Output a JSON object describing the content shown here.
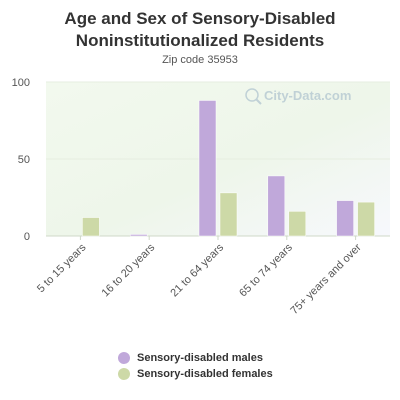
{
  "header": {
    "title_line1": "Age and Sex of Sensory-Disabled",
    "title_line2": "Noninstitutionalized Residents",
    "subtitle": "Zip code 35953"
  },
  "watermark": "City-Data.com",
  "colors": {
    "males": "#c0a8da",
    "females": "#cdd9a7",
    "axis_text": "#555555",
    "gridline": "#e6eee0"
  },
  "chart_data": {
    "type": "bar",
    "title": "Age and Sex of Sensory-Disabled Noninstitutionalized Residents",
    "subtitle": "Zip code 35953",
    "categories": [
      "5 to 15 years",
      "16 to 20 years",
      "21 to 64 years",
      "65 to 74 years",
      "75+ years and over"
    ],
    "series": [
      {
        "name": "Sensory-disabled males",
        "values": [
          0,
          1,
          88,
          39,
          23
        ]
      },
      {
        "name": "Sensory-disabled females",
        "values": [
          12,
          0,
          28,
          16,
          22
        ]
      }
    ],
    "ylim": [
      0,
      100
    ],
    "yticks": [
      0,
      50,
      100
    ],
    "grid": true,
    "legend_position": "bottom"
  }
}
